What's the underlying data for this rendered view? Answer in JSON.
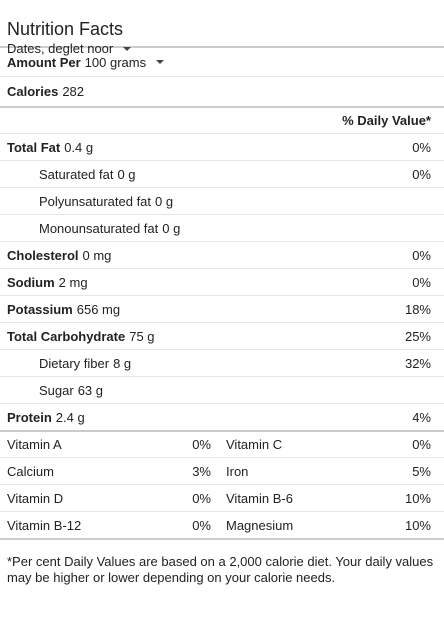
{
  "header": {
    "title": "Nutrition Facts",
    "food": "Dates, deglet noor"
  },
  "serving": {
    "label": "Amount Per",
    "amount": "100 grams"
  },
  "calories": {
    "label": "Calories",
    "value": "282"
  },
  "dv_header": "% Daily Value*",
  "nutrients": [
    {
      "label": "Total Fat",
      "amount": "0.4 g",
      "dv": "0%"
    },
    {
      "label": "Saturated fat",
      "amount": "0 g",
      "dv": "0%"
    },
    {
      "label": "Polyunsaturated fat",
      "amount": "0 g",
      "dv": ""
    },
    {
      "label": "Monounsaturated fat",
      "amount": "0 g",
      "dv": ""
    },
    {
      "label": "Cholesterol",
      "amount": "0 mg",
      "dv": "0%"
    },
    {
      "label": "Sodium",
      "amount": "2 mg",
      "dv": "0%"
    },
    {
      "label": "Potassium",
      "amount": "656 mg",
      "dv": "18%"
    },
    {
      "label": "Total Carbohydrate",
      "amount": "75 g",
      "dv": "25%"
    },
    {
      "label": "Dietary fiber",
      "amount": "8 g",
      "dv": "32%"
    },
    {
      "label": "Sugar",
      "amount": "63 g",
      "dv": ""
    },
    {
      "label": "Protein",
      "amount": "2.4 g",
      "dv": "4%"
    }
  ],
  "vitamins": [
    {
      "left_label": "Vitamin A",
      "left_dv": "0%",
      "right_label": "Vitamin C",
      "right_dv": "0%"
    },
    {
      "left_label": "Calcium",
      "left_dv": "3%",
      "right_label": "Iron",
      "right_dv": "5%"
    },
    {
      "left_label": "Vitamin D",
      "left_dv": "0%",
      "right_label": "Vitamin B-6",
      "right_dv": "10%"
    },
    {
      "left_label": "Vitamin B-12",
      "left_dv": "0%",
      "right_label": "Magnesium",
      "right_dv": "10%"
    }
  ],
  "footnote": "*Per cent Daily Values are based on a 2,000 calorie diet. Your daily values may be higher or lower depending on your calorie needs.",
  "icons": {
    "dropdown": "chevron-down-icon"
  }
}
